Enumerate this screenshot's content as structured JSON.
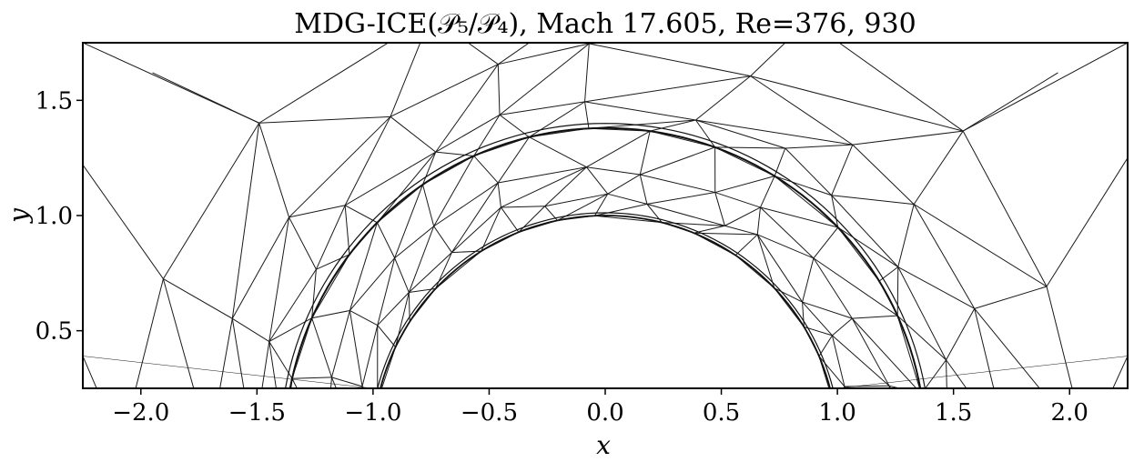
{
  "title": "MDG-ICE(𝒫₅/𝒫₄), Mach 17.605, Re=376, 930",
  "chart_data": {
    "type": "mesh",
    "xlabel": "x",
    "ylabel": "y",
    "xlim": [
      -2.25,
      2.25
    ],
    "ylim": [
      0.25,
      1.75
    ],
    "xticks": [
      "−2.0",
      "−1.5",
      "−1.0",
      "−0.5",
      "0.0",
      "0.5",
      "1.0",
      "1.5",
      "2.0"
    ],
    "yticks": [
      "0.5",
      "1.0",
      "1.5"
    ],
    "grid": false,
    "geometry": "upper half of unit cylinder; bow shock at approx. radius 1.38 concentric around it",
    "cylinder_radius": 1.0,
    "shock_standoff_y": 1.38
  }
}
